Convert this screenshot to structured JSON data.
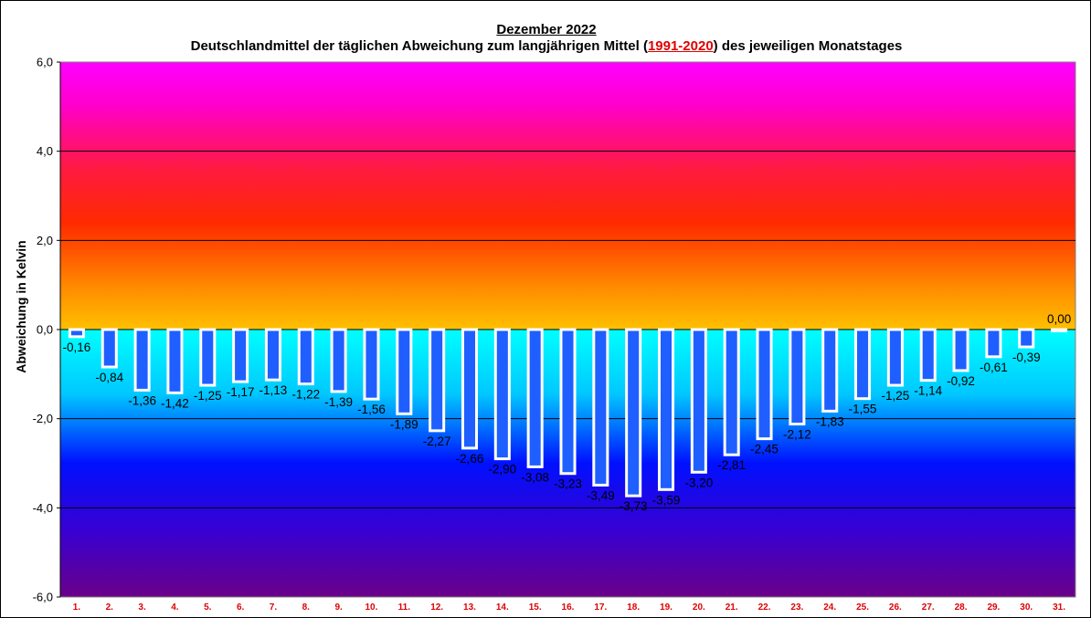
{
  "title": {
    "line1": "Dezember 2022",
    "line2_prefix": "Deutschlandmittel der täglichen Abweichung zum langjährigen Mittel (",
    "line2_period": "1991-2020",
    "line2_suffix": ") des jeweiligen Monatstages"
  },
  "colors": {
    "bar_fill": "#1f5fff",
    "bar_stroke": "#ffffff",
    "tick_label_x": "#e00000",
    "gradient_top": "#ff00ff",
    "gradient_mid_warm": "#ff2a00",
    "gradient_zero": "#ffc000",
    "gradient_cyan": "#00ffff",
    "gradient_blue": "#0010ff",
    "gradient_bottom": "#6a0088"
  },
  "chart_data": {
    "type": "bar",
    "title": "Dezember 2022 — Deutschlandmittel der täglichen Abweichung zum langjährigen Mittel (1991-2020) des jeweiligen Monatstages",
    "ylabel": "Abweichung  in Kelvin",
    "xlabel": "",
    "ylim": [
      -6,
      6
    ],
    "yticks": [
      6,
      4,
      2,
      0,
      -2,
      -4,
      -6
    ],
    "ytick_labels": [
      "6,0",
      "4,0",
      "2,0",
      "0,0",
      "-2,0",
      "-4,0",
      "-6,0"
    ],
    "grid": true,
    "legend": "none",
    "categories": [
      "1.",
      "2.",
      "3.",
      "4.",
      "5.",
      "6.",
      "7.",
      "8.",
      "9.",
      "10.",
      "11.",
      "12.",
      "13.",
      "14.",
      "15.",
      "16.",
      "17.",
      "18.",
      "19.",
      "20.",
      "21.",
      "22.",
      "23.",
      "24.",
      "25.",
      "26.",
      "27.",
      "28.",
      "29.",
      "30.",
      "31."
    ],
    "values": [
      -0.16,
      -0.84,
      -1.36,
      -1.42,
      -1.25,
      -1.17,
      -1.13,
      -1.22,
      -1.39,
      -1.56,
      -1.89,
      -2.27,
      -2.66,
      -2.9,
      -3.08,
      -3.23,
      -3.49,
      -3.73,
      -3.59,
      -3.2,
      -2.81,
      -2.45,
      -2.12,
      -1.83,
      -1.55,
      -1.25,
      -1.14,
      -0.92,
      -0.61,
      -0.39,
      0.0
    ],
    "data_labels": [
      "-0,16",
      "-0,84",
      "-1,36",
      "-1,42",
      "-1,25",
      "-1,17",
      "-1,13",
      "-1,22",
      "-1,39",
      "-1,56",
      "-1,89",
      "-2,27",
      "-2,66",
      "-2,90",
      "-3,08",
      "-3,23",
      "-3,49",
      "-3,73",
      "-3,59",
      "-3,20",
      "-2,81",
      "-2,45",
      "-2,12",
      "-1,83",
      "-1,55",
      "-1,25",
      "-1,14",
      "-0,92",
      "-0,61",
      "-0,39",
      "0,00"
    ]
  }
}
